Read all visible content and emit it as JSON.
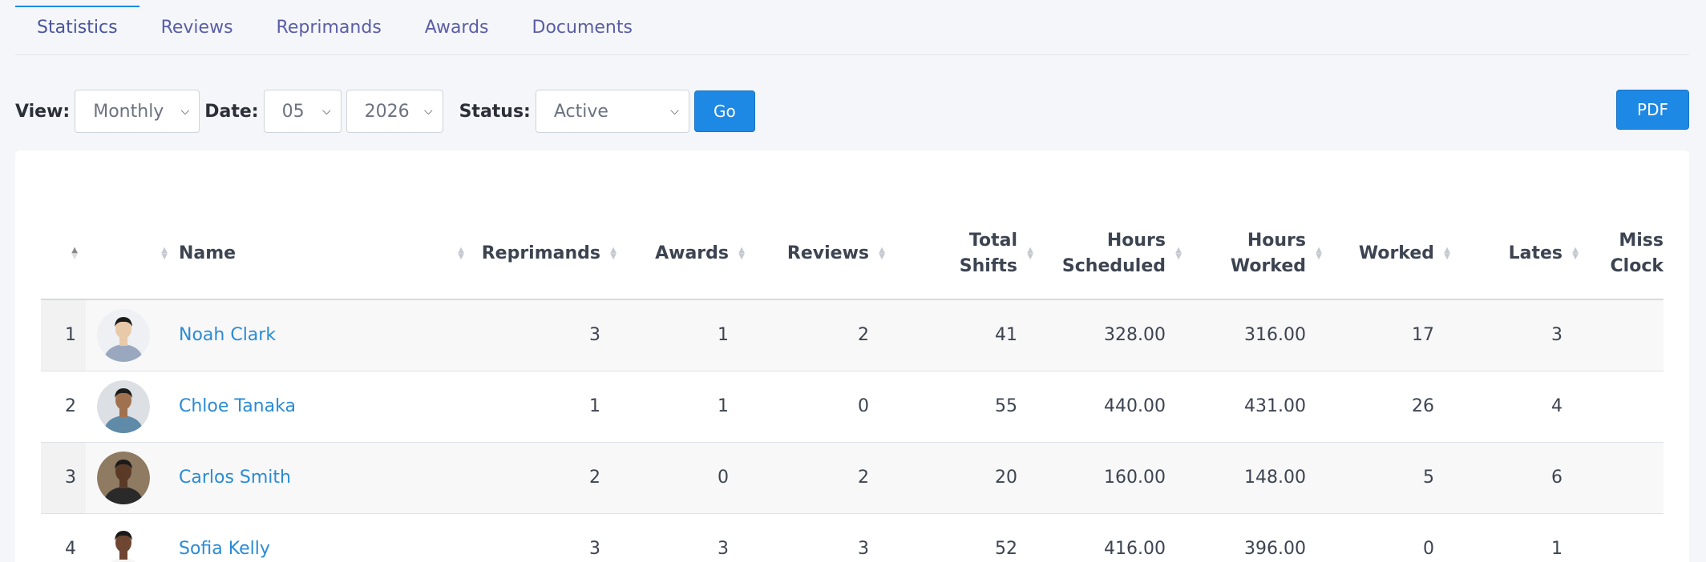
{
  "tabs": [
    {
      "label": "Statistics",
      "active": true
    },
    {
      "label": "Reviews"
    },
    {
      "label": "Reprimands"
    },
    {
      "label": "Awards"
    },
    {
      "label": "Documents"
    }
  ],
  "filters": {
    "view_label": "View:",
    "view_value": "Monthly",
    "date_label": "Date:",
    "month_value": "05",
    "year_value": "2026",
    "status_label": "Status:",
    "status_value": "Active",
    "go_label": "Go",
    "pdf_label": "PDF"
  },
  "table": {
    "headers": {
      "name": "Name",
      "reprimands": "Reprimands",
      "awards": "Awards",
      "reviews": "Reviews",
      "total_shifts_1": "Total",
      "total_shifts_2": "Shifts",
      "hours_scheduled_1": "Hours",
      "hours_scheduled_2": "Scheduled",
      "hours_worked_1": "Hours",
      "hours_worked_2": "Worked",
      "worked": "Worked",
      "lates": "Lates",
      "miss_clock_1": "Miss",
      "miss_clock_2": "Clock"
    },
    "rows": [
      {
        "idx": "1",
        "name": "Noah Clark",
        "reprimands": "3",
        "awards": "1",
        "reviews": "2",
        "total_shifts": "41",
        "hours_scheduled": "328.00",
        "hours_worked": "316.00",
        "worked": "17",
        "lates": "3",
        "skin": "#e8c9a8",
        "hair": "#1a1a1a",
        "shirt": "#9aa8bf",
        "bg": "#eef0f3"
      },
      {
        "idx": "2",
        "name": "Chloe Tanaka",
        "reprimands": "1",
        "awards": "1",
        "reviews": "0",
        "total_shifts": "55",
        "hours_scheduled": "440.00",
        "hours_worked": "431.00",
        "worked": "26",
        "lates": "4",
        "skin": "#a0714f",
        "hair": "#1a1a1a",
        "shirt": "#5f8aa8",
        "bg": "#dcdfe3"
      },
      {
        "idx": "3",
        "name": "Carlos Smith",
        "reprimands": "2",
        "awards": "0",
        "reviews": "2",
        "total_shifts": "20",
        "hours_scheduled": "160.00",
        "hours_worked": "148.00",
        "worked": "5",
        "lates": "6",
        "skin": "#5a3a26",
        "hair": "#1a1a1a",
        "shirt": "#2a2a2a",
        "bg": "#8f7a62"
      },
      {
        "idx": "4",
        "name": "Sofia Kelly",
        "reprimands": "3",
        "awards": "3",
        "reviews": "3",
        "total_shifts": "52",
        "hours_scheduled": "416.00",
        "hours_worked": "396.00",
        "worked": "0",
        "lates": "1",
        "skin": "#6e4631",
        "hair": "#1a1a1a",
        "shirt": "#f4f4f4",
        "bg": "#ffffff"
      }
    ]
  }
}
